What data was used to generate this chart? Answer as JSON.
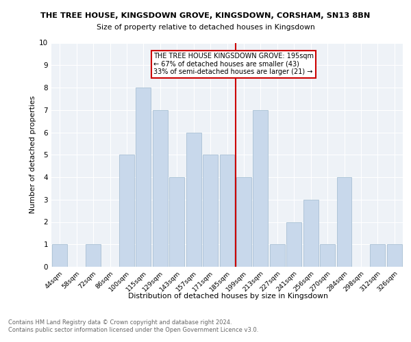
{
  "title1": "THE TREE HOUSE, KINGSDOWN GROVE, KINGSDOWN, CORSHAM, SN13 8BN",
  "title2": "Size of property relative to detached houses in Kingsdown",
  "xlabel": "Distribution of detached houses by size in Kingsdown",
  "ylabel": "Number of detached properties",
  "categories": [
    "44sqm",
    "58sqm",
    "72sqm",
    "86sqm",
    "100sqm",
    "115sqm",
    "129sqm",
    "143sqm",
    "157sqm",
    "171sqm",
    "185sqm",
    "199sqm",
    "213sqm",
    "227sqm",
    "241sqm",
    "256sqm",
    "270sqm",
    "284sqm",
    "298sqm",
    "312sqm",
    "326sqm"
  ],
  "values": [
    1,
    0,
    1,
    0,
    5,
    8,
    7,
    4,
    6,
    5,
    5,
    4,
    7,
    1,
    2,
    3,
    1,
    4,
    0,
    1,
    1
  ],
  "bar_color": "#c8d8eb",
  "bar_edgecolor": "#a8c0d4",
  "vline_color": "#cc0000",
  "annotation_text": "THE TREE HOUSE KINGSDOWN GROVE: 195sqm\n← 67% of detached houses are smaller (43)\n33% of semi-detached houses are larger (21) →",
  "annotation_box_color": "#cc0000",
  "ylim": [
    0,
    10
  ],
  "yticks": [
    0,
    1,
    2,
    3,
    4,
    5,
    6,
    7,
    8,
    9,
    10
  ],
  "footer": "Contains HM Land Registry data © Crown copyright and database right 2024.\nContains public sector information licensed under the Open Government Licence v3.0.",
  "bg_color": "#eef2f7",
  "grid_color": "#ffffff"
}
